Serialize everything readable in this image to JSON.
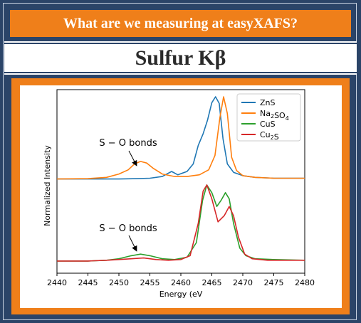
{
  "header": {
    "banner_text": "What are we measuring at easyXAFS?",
    "title": "Sulfur Kβ"
  },
  "chart_data": {
    "type": "line",
    "title": "",
    "xlabel": "Energy (eV",
    "ylabel": "Normalized Intensity",
    "xlim": [
      2440,
      2480
    ],
    "x_ticks": [
      2440,
      2445,
      2450,
      2455,
      2460,
      2465,
      2470,
      2475,
      2480
    ],
    "x_tick_labels": [
      "2440",
      "2445",
      "2450",
      "2455",
      "2460",
      "2465",
      "2470",
      "2475",
      "2480"
    ],
    "y_ticks": [],
    "grid": false,
    "legend_position": "top-right",
    "legend": [
      {
        "label_base": "ZnS",
        "label_sub": "",
        "label_tail": "",
        "color": "#1f77b4"
      },
      {
        "label_base": "Na",
        "label_sub": "2",
        "label_tail": "SO",
        "label_sub2": "4",
        "color": "#ff7f0e"
      },
      {
        "label_base": "CuS",
        "label_sub": "",
        "label_tail": "",
        "color": "#2ca02c"
      },
      {
        "label_base": "Cu",
        "label_sub": "2",
        "label_tail": "S",
        "color": "#d62728"
      }
    ],
    "annotations": [
      {
        "text": "S − O bonds",
        "target_x": 2453.5,
        "panel": "upper"
      },
      {
        "text": "S − O bonds",
        "target_x": 2453.5,
        "panel": "lower"
      }
    ],
    "series": [
      {
        "name": "ZnS",
        "color": "#1f77b4",
        "group": "upper",
        "points": [
          [
            2440,
            0.02
          ],
          [
            2445,
            0.02
          ],
          [
            2450,
            0.02
          ],
          [
            2453,
            0.025
          ],
          [
            2455,
            0.03
          ],
          [
            2457,
            0.05
          ],
          [
            2458.5,
            0.11
          ],
          [
            2459.5,
            0.07
          ],
          [
            2461,
            0.11
          ],
          [
            2462,
            0.2
          ],
          [
            2462.8,
            0.42
          ],
          [
            2463.6,
            0.56
          ],
          [
            2464.3,
            0.72
          ],
          [
            2465,
            0.93
          ],
          [
            2465.6,
            1.0
          ],
          [
            2466.2,
            0.92
          ],
          [
            2466.8,
            0.5
          ],
          [
            2467.5,
            0.2
          ],
          [
            2468.5,
            0.1
          ],
          [
            2470,
            0.06
          ],
          [
            2472,
            0.04
          ],
          [
            2475,
            0.03
          ],
          [
            2480,
            0.03
          ]
        ]
      },
      {
        "name": "Na2SO4",
        "color": "#ff7f0e",
        "group": "upper",
        "points": [
          [
            2440,
            0.02
          ],
          [
            2445,
            0.025
          ],
          [
            2448,
            0.04
          ],
          [
            2450,
            0.08
          ],
          [
            2451.5,
            0.13
          ],
          [
            2452.5,
            0.2
          ],
          [
            2453.5,
            0.23
          ],
          [
            2454.5,
            0.21
          ],
          [
            2455.5,
            0.15
          ],
          [
            2457,
            0.08
          ],
          [
            2459,
            0.05
          ],
          [
            2461,
            0.05
          ],
          [
            2463,
            0.07
          ],
          [
            2464.5,
            0.13
          ],
          [
            2465.5,
            0.3
          ],
          [
            2466.3,
            0.75
          ],
          [
            2466.9,
            1.0
          ],
          [
            2467.5,
            0.8
          ],
          [
            2468.2,
            0.28
          ],
          [
            2469,
            0.12
          ],
          [
            2470,
            0.06
          ],
          [
            2472,
            0.04
          ],
          [
            2475,
            0.03
          ],
          [
            2480,
            0.03
          ]
        ]
      },
      {
        "name": "CuS",
        "color": "#2ca02c",
        "group": "lower",
        "points": [
          [
            2440,
            0.01
          ],
          [
            2445,
            0.01
          ],
          [
            2448,
            0.02
          ],
          [
            2450,
            0.04
          ],
          [
            2452,
            0.08
          ],
          [
            2453.5,
            0.1
          ],
          [
            2455,
            0.08
          ],
          [
            2457,
            0.04
          ],
          [
            2459,
            0.03
          ],
          [
            2461,
            0.06
          ],
          [
            2462.5,
            0.25
          ],
          [
            2463.5,
            0.8
          ],
          [
            2464.2,
            1.0
          ],
          [
            2465,
            0.9
          ],
          [
            2465.8,
            0.72
          ],
          [
            2466.5,
            0.8
          ],
          [
            2467.2,
            0.9
          ],
          [
            2467.8,
            0.82
          ],
          [
            2468.5,
            0.5
          ],
          [
            2469.5,
            0.18
          ],
          [
            2470.5,
            0.08
          ],
          [
            2472,
            0.04
          ],
          [
            2475,
            0.03
          ],
          [
            2480,
            0.02
          ]
        ]
      },
      {
        "name": "Cu2S",
        "color": "#d62728",
        "group": "lower",
        "points": [
          [
            2440,
            0.01
          ],
          [
            2445,
            0.01
          ],
          [
            2448,
            0.02
          ],
          [
            2450,
            0.03
          ],
          [
            2452,
            0.04
          ],
          [
            2454,
            0.05
          ],
          [
            2456,
            0.03
          ],
          [
            2458,
            0.02
          ],
          [
            2460,
            0.03
          ],
          [
            2461.5,
            0.08
          ],
          [
            2462.8,
            0.5
          ],
          [
            2463.6,
            0.92
          ],
          [
            2464.2,
            1.0
          ],
          [
            2465,
            0.82
          ],
          [
            2466,
            0.52
          ],
          [
            2467,
            0.6
          ],
          [
            2467.8,
            0.72
          ],
          [
            2468.5,
            0.6
          ],
          [
            2469.3,
            0.32
          ],
          [
            2470.3,
            0.1
          ],
          [
            2471.5,
            0.04
          ],
          [
            2474,
            0.02
          ],
          [
            2480,
            0.02
          ]
        ]
      }
    ]
  }
}
